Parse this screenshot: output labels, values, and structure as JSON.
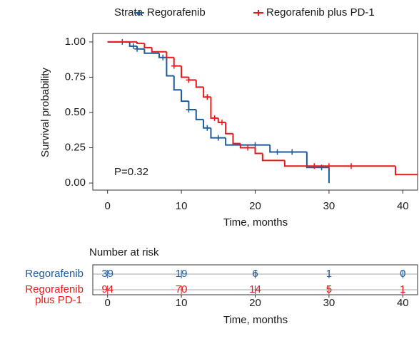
{
  "chart_data": [
    {
      "type": "kaplan-meier",
      "legend_title": "Strata",
      "xlabel": "Time, months",
      "ylabel": "Survival probability",
      "annotation": "P=0.32",
      "xlim": [
        -2,
        42
      ],
      "ylim": [
        -0.05,
        1.06
      ],
      "xticks": [
        0,
        10,
        20,
        30,
        40
      ],
      "yticks": [
        {
          "value": 0,
          "label": "0.00"
        },
        {
          "value": 0.25,
          "label": "0.25"
        },
        {
          "value": 0.5,
          "label": "0.50"
        },
        {
          "value": 0.75,
          "label": "0.75"
        },
        {
          "value": 1,
          "label": "1.00"
        }
      ],
      "series": [
        {
          "name": "Regorafenib",
          "color": "#1f5a9a",
          "x": [
            0,
            3,
            4,
            5,
            7,
            8,
            9,
            10,
            11,
            12,
            13,
            14,
            16,
            22,
            27,
            30
          ],
          "values": [
            1,
            0.97,
            0.95,
            0.92,
            0.89,
            0.76,
            0.66,
            0.58,
            0.52,
            0.45,
            0.39,
            0.32,
            0.27,
            0.22,
            0.11,
            0
          ],
          "censor_x": [
            2,
            3.5,
            4,
            7.5,
            11,
            13.5,
            15,
            20,
            23,
            25,
            29
          ],
          "censor_values": [
            1,
            0.97,
            0.95,
            0.89,
            0.52,
            0.39,
            0.32,
            0.27,
            0.22,
            0.22,
            0.11
          ]
        },
        {
          "name": "Regorafenib plus PD-1",
          "color": "#e8191b",
          "x": [
            0,
            4,
            5,
            6,
            8,
            9,
            10,
            11,
            12,
            13,
            14,
            15,
            16,
            17,
            18,
            20,
            21,
            24,
            39
          ],
          "values": [
            1,
            0.99,
            0.96,
            0.93,
            0.89,
            0.83,
            0.75,
            0.73,
            0.68,
            0.61,
            0.46,
            0.43,
            0.35,
            0.28,
            0.25,
            0.21,
            0.16,
            0.12,
            0.06
          ],
          "censor_x": [
            9,
            11,
            13.5,
            14.5,
            15.5,
            19,
            28,
            30,
            33
          ],
          "censor_values": [
            0.83,
            0.73,
            0.61,
            0.46,
            0.43,
            0.25,
            0.12,
            0.12,
            0.12
          ]
        }
      ]
    },
    {
      "type": "risk-table",
      "title": "Number at risk",
      "xlabel": "Time, months",
      "xlim": [
        -2,
        42
      ],
      "xticks": [
        0,
        10,
        20,
        30,
        40
      ],
      "rows": [
        {
          "name_lines": [
            "Regorafenib"
          ],
          "color": "#1f5a9a",
          "values": [
            39,
            19,
            6,
            1,
            0
          ]
        },
        {
          "name_lines": [
            "Regorafenib",
            "plus PD-1"
          ],
          "color": "#e8191b",
          "values": [
            94,
            70,
            14,
            5,
            1
          ]
        }
      ]
    }
  ]
}
